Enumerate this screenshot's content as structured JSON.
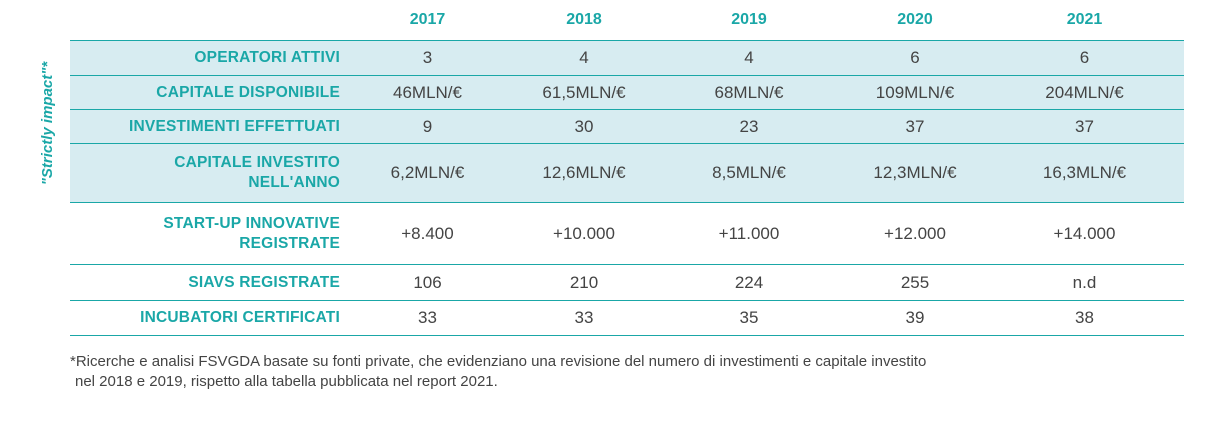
{
  "side_label": "\"Strictly impact\"*",
  "years": [
    "2017",
    "2018",
    "2019",
    "2020",
    "2021"
  ],
  "rows": [
    {
      "label": "OPERATORI ATTIVI",
      "values": [
        "3",
        "4",
        "4",
        "6",
        "6"
      ]
    },
    {
      "label": "CAPITALE DISPONIBILE",
      "values": [
        "46MLN/€",
        "61,5MLN/€",
        "68MLN/€",
        "109MLN/€",
        "204MLN/€"
      ]
    },
    {
      "label": "INVESTIMENTI EFFETTUATI",
      "values": [
        "9",
        "30",
        "23",
        "37",
        "37"
      ]
    },
    {
      "label_lines": [
        "CAPITALE INVESTITO",
        "NELL'ANNO"
      ],
      "values": [
        "6,2MLN/€",
        "12,6MLN/€",
        "8,5MLN/€",
        "12,3MLN/€",
        "16,3MLN/€"
      ]
    },
    {
      "label_lines": [
        "START-UP INNOVATIVE",
        "REGISTRATE"
      ],
      "values": [
        "+8.400",
        "+10.000",
        "+11.000",
        "+12.000",
        "+14.000"
      ]
    },
    {
      "label": "SIAVS REGISTRATE",
      "values": [
        "106",
        "210",
        "224",
        "255",
        "n.d"
      ]
    },
    {
      "label": "INCUBATORI CERTIFICATI",
      "values": [
        "33",
        "33",
        "35",
        "39",
        "38"
      ]
    }
  ],
  "footnote": {
    "line1": "*Ricerche e analisi FSVGDA basate su fonti private, che evidenziano una revisione del numero di investimenti e capitale investito",
    "line2": "nel 2018 e 2019, rispetto alla tabella pubblicata nel report 2021."
  },
  "colors": {
    "accent": "#1aa7a7",
    "shade": "#d7ecf1",
    "text": "#444444"
  }
}
